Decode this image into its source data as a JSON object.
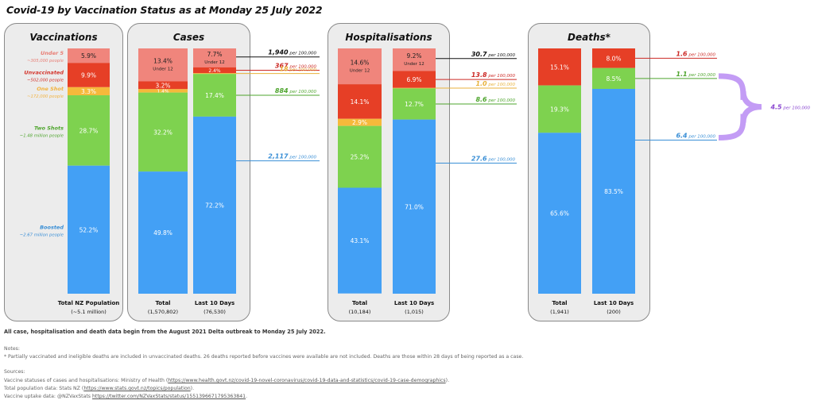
{
  "title": "Covid-19 by Vaccination Status as at  Monday 25 July 2022",
  "colors": {
    "under": "#f0857c",
    "unvaccinated": "#e63f26",
    "one_shot": "#f6b93b",
    "two_shots": "#7ed24f",
    "boosted": "#43a0f5",
    "bracket": "#c39cf5",
    "rate_under": "#111111",
    "rate_unvax": "#cc2a26",
    "rate_one": "#e8b23c",
    "rate_two": "#4ea52d",
    "rate_boost": "#3a8fd6",
    "rate_bracket": "#8a47d0"
  },
  "panels": [
    {
      "name": "vaccinations",
      "title": "Vaccinations"
    },
    {
      "name": "cases",
      "title": "Cases"
    },
    {
      "name": "hospitalisations",
      "title": "Hospitalisations"
    },
    {
      "name": "deaths",
      "title": "Deaths*"
    }
  ],
  "chart_data": {
    "type": "bar",
    "stacked": true,
    "normalized": true,
    "title": "Covid-19 by Vaccination Status as at  Monday 25 July 2022",
    "segment_order_top_to_bottom": [
      "Under 5/12",
      "Unvaccinated",
      "One Shot",
      "Two Shots",
      "Boosted"
    ],
    "bars": [
      {
        "id": "vax-total",
        "panel": "vaccinations",
        "label": "Total NZ Population",
        "sublabel": "(~5.1 million)",
        "segments": [
          {
            "key": "under",
            "value": 5.9,
            "label": "5.9%",
            "label_color": "#222"
          },
          {
            "key": "unvaccinated",
            "value": 9.9,
            "label": "9.9%"
          },
          {
            "key": "one_shot",
            "value": 3.3,
            "label": "3.3%"
          },
          {
            "key": "two_shots",
            "value": 28.7,
            "label": "28.7%"
          },
          {
            "key": "boosted",
            "value": 52.2,
            "label": "52.2%"
          }
        ]
      },
      {
        "id": "cases-total",
        "panel": "cases",
        "label": "Total",
        "sublabel": "(1,570,802)",
        "segments": [
          {
            "key": "under",
            "value": 13.4,
            "label": "13.4%",
            "note": "Under 12",
            "label_color": "#222"
          },
          {
            "key": "unvaccinated",
            "value": 3.2,
            "label": "3.2%"
          },
          {
            "key": "one_shot",
            "value": 1.4,
            "label": "1.4%"
          },
          {
            "key": "two_shots",
            "value": 32.2,
            "label": "32.2%"
          },
          {
            "key": "boosted",
            "value": 49.8,
            "label": "49.8%"
          }
        ]
      },
      {
        "id": "cases-10d",
        "panel": "cases",
        "label": "Last 10 Days",
        "sublabel": "(76,530)",
        "segments": [
          {
            "key": "under",
            "value": 7.7,
            "label": "7.7%",
            "note": "Under 12",
            "label_color": "#222"
          },
          {
            "key": "unvaccinated",
            "value": 2.4,
            "label": "2.4%"
          },
          {
            "key": "one_shot",
            "value": 0.3,
            "label": "0.3%"
          },
          {
            "key": "two_shots",
            "value": 17.4,
            "label": "17.4%"
          },
          {
            "key": "boosted",
            "value": 72.2,
            "label": "72.2%"
          }
        ]
      },
      {
        "id": "hosp-total",
        "panel": "hospitalisations",
        "label": "Total",
        "sublabel": "(10,184)",
        "segments": [
          {
            "key": "under",
            "value": 14.6,
            "label": "14.6%",
            "note": "Under 12",
            "label_color": "#222"
          },
          {
            "key": "unvaccinated",
            "value": 14.1,
            "label": "14.1%"
          },
          {
            "key": "one_shot",
            "value": 2.9,
            "label": "2.9%"
          },
          {
            "key": "two_shots",
            "value": 25.2,
            "label": "25.2%"
          },
          {
            "key": "boosted",
            "value": 43.1,
            "label": "43.1%"
          }
        ]
      },
      {
        "id": "hosp-10d",
        "panel": "hospitalisations",
        "label": "Last 10 Days",
        "sublabel": "(1,015)",
        "segments": [
          {
            "key": "under",
            "value": 9.2,
            "label": "9.2%",
            "note": "Under 12",
            "label_color": "#222"
          },
          {
            "key": "unvaccinated",
            "value": 6.9,
            "label": "6.9%"
          },
          {
            "key": "one_shot",
            "value": 0.2,
            "label": "0.2%"
          },
          {
            "key": "two_shots",
            "value": 12.7,
            "label": "12.7%"
          },
          {
            "key": "boosted",
            "value": 71.0,
            "label": "71.0%"
          }
        ]
      },
      {
        "id": "deaths-total",
        "panel": "deaths",
        "label": "Total",
        "sublabel": "(1,941)",
        "segments": [
          {
            "key": "unvaccinated",
            "value": 15.1,
            "label": "15.1%"
          },
          {
            "key": "two_shots",
            "value": 19.3,
            "label": "19.3%"
          },
          {
            "key": "boosted",
            "value": 65.6,
            "label": "65.6%"
          }
        ]
      },
      {
        "id": "deaths-10d",
        "panel": "deaths",
        "label": "Last 10 Days",
        "sublabel": "(200)",
        "segments": [
          {
            "key": "unvaccinated",
            "value": 8.0,
            "label": "8.0%"
          },
          {
            "key": "two_shots",
            "value": 8.5,
            "label": "8.5%"
          },
          {
            "key": "boosted",
            "value": 83.5,
            "label": "83.5%"
          }
        ]
      }
    ],
    "vaccination_labels": [
      {
        "key": "under",
        "name": "Under 5",
        "people": "~305,000 people"
      },
      {
        "key": "unvaccinated",
        "name": "Unvaccinated",
        "people": "~502,000 people"
      },
      {
        "key": "one_shot",
        "name": "One Shot",
        "people": "~172,000 people"
      },
      {
        "key": "two_shots",
        "name": "Two Shots",
        "people": "~1.48 million people"
      },
      {
        "key": "boosted",
        "name": "Boosted",
        "people": "~2.67 million people"
      }
    ],
    "rates": {
      "unit": "per 100,000",
      "cases_last_10_days": [
        {
          "key": "under",
          "value": "1,940"
        },
        {
          "key": "unvaccinated",
          "value": "367"
        },
        {
          "key": "one_shot",
          "value": "18"
        },
        {
          "key": "two_shots",
          "value": "884"
        },
        {
          "key": "boosted",
          "value": "2,117"
        }
      ],
      "hospitalisations_last_10_days": [
        {
          "key": "under",
          "value": "30.7"
        },
        {
          "key": "unvaccinated",
          "value": "13.8"
        },
        {
          "key": "one_shot",
          "value": "1.0"
        },
        {
          "key": "two_shots",
          "value": "8.6"
        },
        {
          "key": "boosted",
          "value": "27.6"
        }
      ],
      "deaths_last_10_days": [
        {
          "key": "unvaccinated",
          "value": "1.6"
        },
        {
          "key": "two_shots",
          "value": "1.1"
        },
        {
          "key": "boosted",
          "value": "6.4"
        }
      ],
      "deaths_bracket": {
        "value": "4.5",
        "spans": [
          "two_shots",
          "boosted"
        ]
      }
    }
  },
  "footer": {
    "summary": "All case, hospitalisation and death data begin from the August 2021 Delta outbreak to Monday 25 July 2022.",
    "notes_heading": "Notes:",
    "note_1": "* Partially vaccinated and ineligible deaths are included in unvaccinated deaths. 26 deaths reported before vaccines were available are not included. Deaths are those within 28 days of being reported as a case.",
    "sources_heading": "Sources:",
    "source_1_text": "Vaccine statuses of cases and hospitalisations: Ministry of Health (",
    "source_1_link": "https://www.health.govt.nz/covid-19-novel-coronavirus/covid-19-data-and-statistics/covid-19-case-demographics",
    "source_1_end": ").",
    "source_2_text": "Total population data: Stats NZ (",
    "source_2_link": "https://www.stats.govt.nz/topics/population",
    "source_2_end": ").",
    "source_3_text": "Vaccine uptake data: @NZVaxStats ",
    "source_3_link": "https://twitter.com/NZVaxStats/status/1551396671795363841",
    "source_3_end": "."
  }
}
